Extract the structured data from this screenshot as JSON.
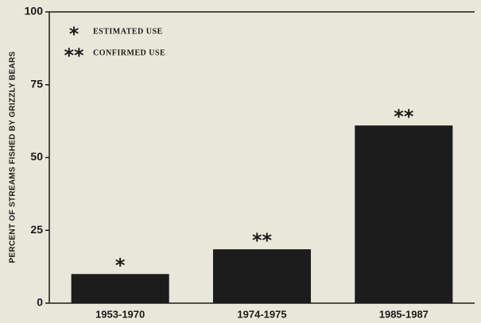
{
  "chart_data": {
    "type": "bar",
    "y_label": "PERCENT OF STREAMS FISHED BY GRIZZLY BEARS",
    "categories": [
      "1953-1970",
      "1974-1975",
      "1985-1987"
    ],
    "values": [
      10,
      18.5,
      61
    ],
    "annotations": [
      "*",
      "**",
      "**"
    ],
    "color": "#1c1c1c",
    "ylim": [
      0,
      100
    ],
    "yticks": [
      0,
      25,
      50,
      75,
      100
    ],
    "legend": [
      {
        "symbol": "*",
        "label": "ESTIMATED USE"
      },
      {
        "symbol": "**",
        "label": "CONFIRMED USE"
      }
    ]
  }
}
